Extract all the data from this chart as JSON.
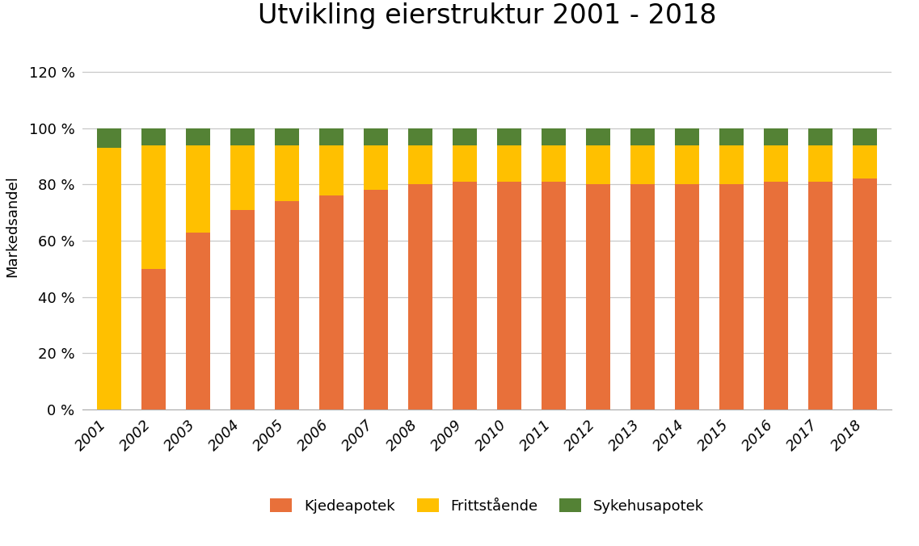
{
  "years": [
    2001,
    2002,
    2003,
    2004,
    2005,
    2006,
    2007,
    2008,
    2009,
    2010,
    2011,
    2012,
    2013,
    2014,
    2015,
    2016,
    2017,
    2018
  ],
  "kjedeapotek": [
    0,
    50,
    63,
    71,
    74,
    76,
    78,
    80,
    81,
    81,
    81,
    80,
    80,
    80,
    80,
    81,
    81,
    82
  ],
  "frittstaaende": [
    93,
    44,
    31,
    23,
    20,
    18,
    16,
    14,
    13,
    13,
    13,
    14,
    14,
    14,
    14,
    13,
    13,
    12
  ],
  "sykehusapotek": [
    7,
    6,
    6,
    6,
    6,
    6,
    6,
    6,
    6,
    6,
    6,
    6,
    6,
    6,
    6,
    6,
    6,
    6
  ],
  "kjedeapotek_color": "#E8703A",
  "frittstaaende_color": "#FFC000",
  "sykehusapotek_color": "#548235",
  "title": "Utvikling eierstruktur 2001 - 2018",
  "ylabel": "Markedsandel",
  "yticks": [
    0,
    20,
    40,
    60,
    80,
    100,
    120
  ],
  "ytick_labels": [
    "0 %",
    "20 %",
    "40 %",
    "60 %",
    "80 %",
    "100 %",
    "120 %"
  ],
  "ylim": [
    0,
    130
  ],
  "background_color": "#ffffff",
  "grid_color": "#c8c8c8",
  "title_fontsize": 24,
  "axis_fontsize": 13,
  "tick_fontsize": 13,
  "legend_fontsize": 13,
  "bar_width": 0.55
}
